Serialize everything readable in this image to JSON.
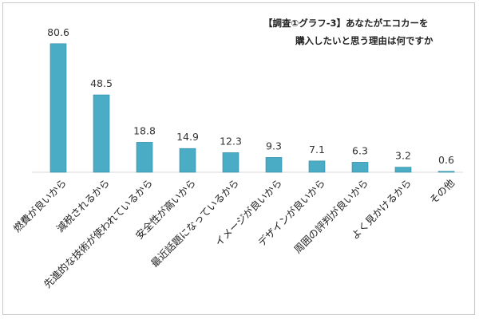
{
  "chart_data": {
    "type": "bar",
    "title_line1": "【調査①グラフ-3】あなたがエコカーを",
    "title_line2": "購入したいと思う理由は何ですか",
    "categories": [
      "燃費が良いから",
      "減税されるから",
      "先進的な技術が使われているから",
      "安全性が高いから",
      "最近話題になっているから",
      "イメージが良いから",
      "デザインが良いから",
      "周囲の評判が良いから",
      "よく見かけるから",
      "その他"
    ],
    "values": [
      80.6,
      48.5,
      18.8,
      14.9,
      12.3,
      9.3,
      7.1,
      6.3,
      3.2,
      0.6
    ],
    "value_labels": [
      "80.6",
      "48.5",
      "18.8",
      "14.9",
      "12.3",
      "9.3",
      "7.1",
      "6.3",
      "3.2",
      "0.6"
    ],
    "ylim": [
      0,
      100
    ],
    "grid": false,
    "legend": "none",
    "bar_color": "#4bacc6",
    "bar_edge_color": "#2e8ba6"
  }
}
